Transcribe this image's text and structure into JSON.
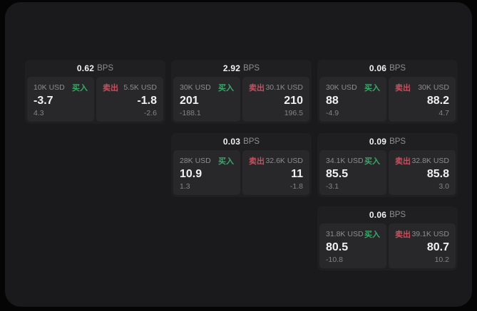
{
  "labels": {
    "unit": "BPS",
    "buy": "买入",
    "sell": "卖出"
  },
  "colors": {
    "buy_accent": "#3aa869",
    "sell_accent": "#c4515f",
    "panel_bg": "#1a1a1c",
    "card_bg": "#1f1f21",
    "tile_bg": "#28282b"
  },
  "cards": [
    {
      "row": 1,
      "col": 1,
      "bps": "0.62",
      "buy": {
        "amount": "10K USD",
        "value": "-3.7",
        "sub": "4.3"
      },
      "sell": {
        "amount": "5.5K USD",
        "value": "-1.8",
        "sub": "-2.6"
      }
    },
    {
      "row": 1,
      "col": 2,
      "bps": "2.92",
      "buy": {
        "amount": "30K USD",
        "value": "201",
        "sub": "-188.1"
      },
      "sell": {
        "amount": "30.1K USD",
        "value": "210",
        "sub": "196.5"
      }
    },
    {
      "row": 1,
      "col": 3,
      "bps": "0.06",
      "buy": {
        "amount": "30K USD",
        "value": "88",
        "sub": "-4.9"
      },
      "sell": {
        "amount": "30K USD",
        "value": "88.2",
        "sub": "4.7"
      }
    },
    {
      "row": 2,
      "col": 2,
      "bps": "0.03",
      "buy": {
        "amount": "28K USD",
        "value": "10.9",
        "sub": "1.3"
      },
      "sell": {
        "amount": "32.6K USD",
        "value": "11",
        "sub": "-1.8"
      }
    },
    {
      "row": 2,
      "col": 3,
      "bps": "0.09",
      "buy": {
        "amount": "34.1K USD",
        "value": "85.5",
        "sub": "-3.1"
      },
      "sell": {
        "amount": "32.8K USD",
        "value": "85.8",
        "sub": "3.0"
      }
    },
    {
      "row": 3,
      "col": 3,
      "bps": "0.06",
      "buy": {
        "amount": "31.8K USD",
        "value": "80.5",
        "sub": "-10.8"
      },
      "sell": {
        "amount": "39.1K USD",
        "value": "80.7",
        "sub": "10.2"
      }
    }
  ]
}
